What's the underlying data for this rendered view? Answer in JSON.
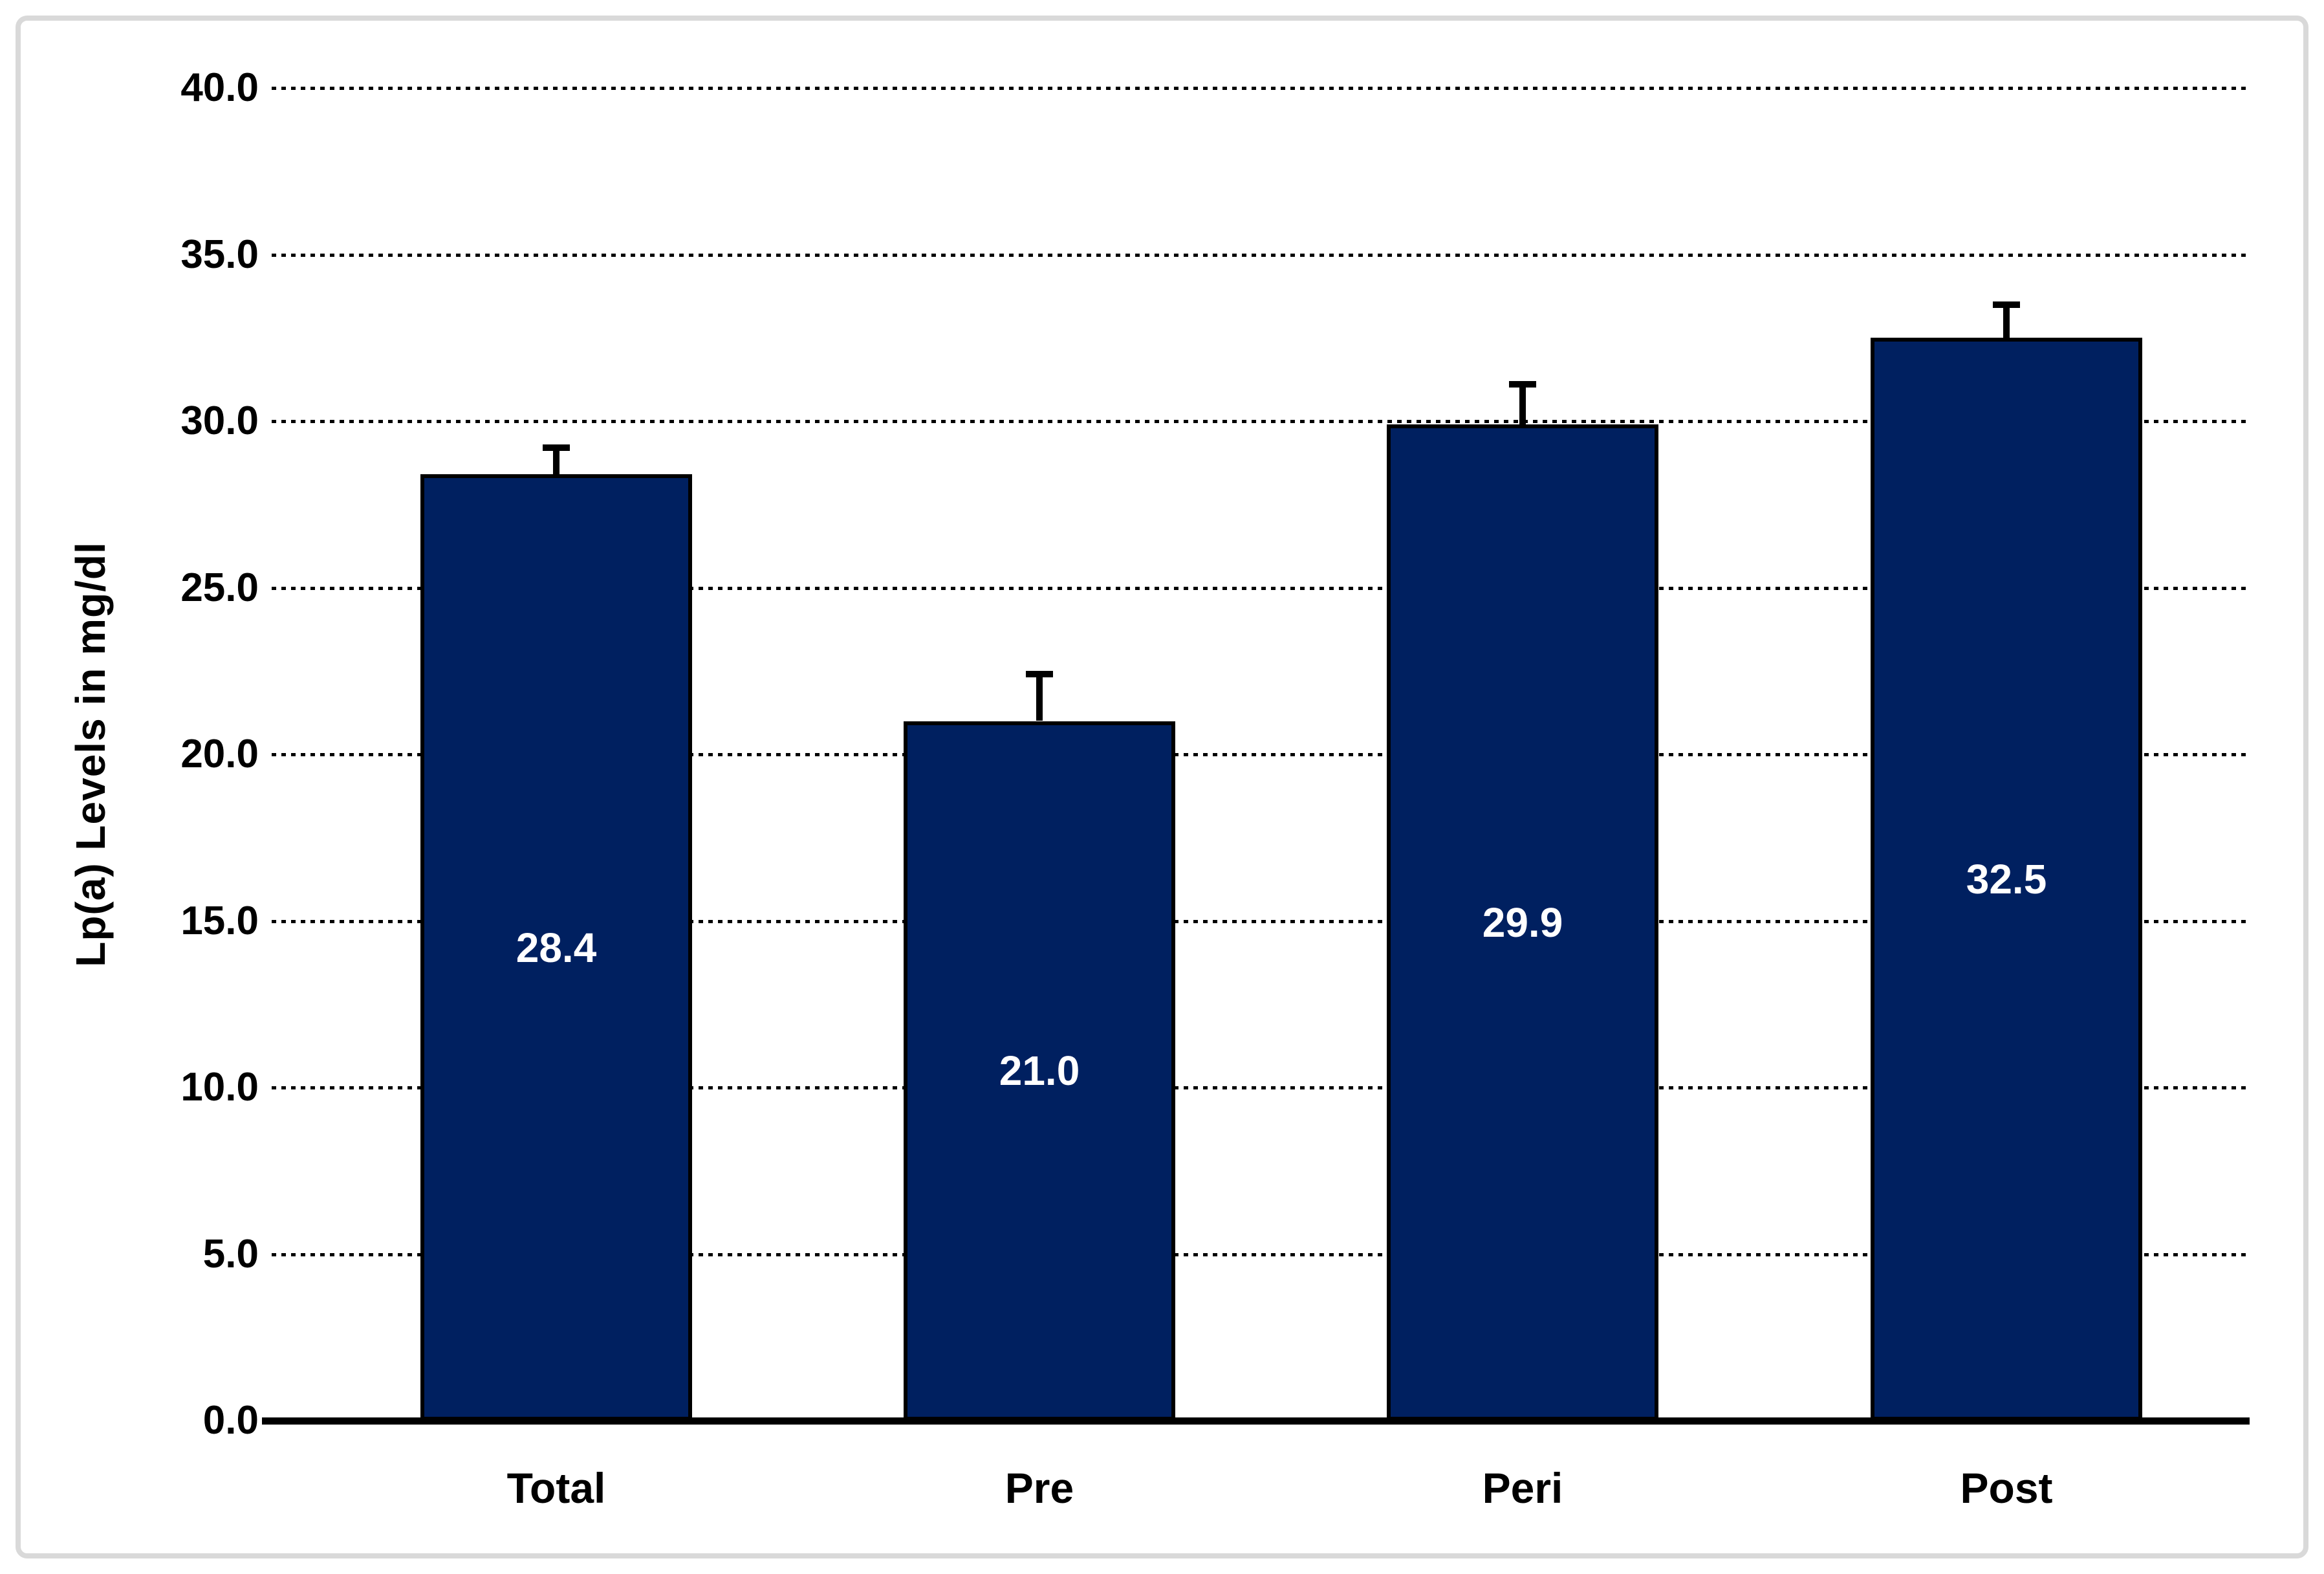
{
  "chart_data": {
    "type": "bar",
    "title": "",
    "categories": [
      "Total",
      "Pre",
      "Peri",
      "Post"
    ],
    "series": [
      {
        "name": "Lp(a) Levels",
        "values": [
          28.4,
          21.0,
          29.9,
          32.5
        ],
        "errors_upper": [
          0.8,
          1.4,
          1.2,
          1.0
        ]
      }
    ],
    "data_labels": [
      "28.4",
      "21.0",
      "29.9",
      "32.5"
    ],
    "xlabel": "",
    "ylabel": "Lp(a) Levels in mg/dl",
    "ylim": [
      0,
      40
    ],
    "ytick_step": 5,
    "ytick_labels": [
      "40.0",
      "35.0",
      "30.0",
      "25.0",
      "20.0",
      "15.0",
      "10.0",
      "5.0",
      "0.0"
    ],
    "grid": {
      "horizontal": true,
      "style": "dotted",
      "color": "#000000"
    },
    "legend": "none",
    "error_bars": "upper whisker with cap",
    "colors": {
      "bar_fill": "#002060",
      "bar_border": "#000000",
      "data_label_text": "#FFFFFF",
      "axis_text": "#000000",
      "gridline": "#000000",
      "axis_line": "#000000",
      "frame_border": "#D9D9D9",
      "background": "#FFFFFF"
    }
  }
}
